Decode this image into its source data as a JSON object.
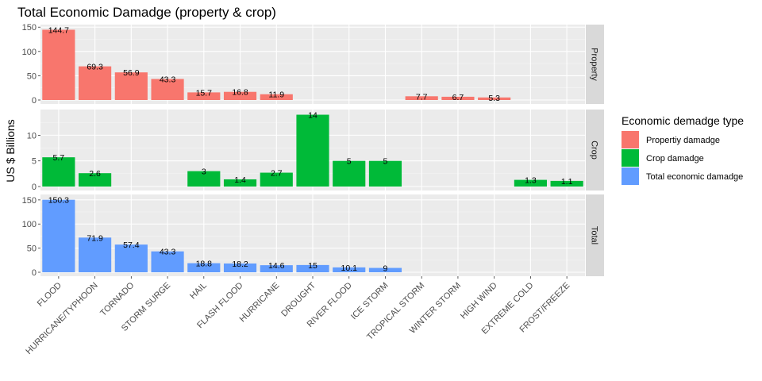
{
  "chart_data": {
    "type": "bar",
    "title": "Total Economic Damadge (property & crop)",
    "xlabel": "",
    "ylabel": "US $ Billions",
    "categories": [
      "FLOOD",
      "HURRICANE/TYPHOON",
      "TORNADO",
      "STORM SURGE",
      "HAIL",
      "FLASH FLOOD",
      "HURRICANE",
      "DROUGHT",
      "RIVER FLOOD",
      "ICE STORM",
      "TROPICAL STORM",
      "WINTER STORM",
      "HIGH WIND",
      "EXTREME COLD",
      "FROST/FREEZE"
    ],
    "legend_title": "Economic demadge type",
    "legend_position": "right",
    "grid": true,
    "series": [
      {
        "name": "Propertiy damadge",
        "facet": "Property",
        "color": "#F8766D",
        "ylim": [
          0,
          152
        ],
        "yticks": [
          0,
          50,
          100,
          150
        ],
        "values": [
          144.7,
          69.3,
          56.9,
          43.3,
          15.7,
          16.8,
          11.9,
          null,
          null,
          null,
          7.7,
          6.7,
          5.3,
          null,
          null
        ],
        "labels": [
          "144.7",
          "69.3",
          "56.9",
          "43.3",
          "15.7",
          "16.8",
          "11.9",
          "",
          "",
          "",
          "7.7",
          "6.7",
          "5.3",
          "",
          ""
        ]
      },
      {
        "name": "Crop damadge",
        "facet": "Crop",
        "color": "#00BA38",
        "ylim": [
          0,
          14.7
        ],
        "yticks": [
          0,
          5,
          10
        ],
        "values": [
          5.7,
          2.6,
          null,
          null,
          3,
          1.4,
          2.7,
          14,
          5,
          5,
          null,
          null,
          null,
          1.3,
          1.1
        ],
        "labels": [
          "5.7",
          "2.6",
          "",
          "",
          "3",
          "1.4",
          "2.7",
          "14",
          "5",
          "5",
          "",
          "",
          "",
          "1.3",
          "1.1"
        ]
      },
      {
        "name": "Total economic damadge",
        "facet": "Total",
        "color": "#619CFF",
        "ylim": [
          0,
          158
        ],
        "yticks": [
          0,
          50,
          100,
          150
        ],
        "values": [
          150.3,
          71.9,
          57.4,
          43.3,
          18.8,
          18.2,
          14.6,
          15,
          10.1,
          9,
          null,
          null,
          null,
          null,
          null
        ],
        "labels": [
          "150.3",
          "71.9",
          "57.4",
          "43.3",
          "18.8",
          "18.2",
          "14.6",
          "15",
          "10.1",
          "9",
          "",
          "",
          "",
          "",
          ""
        ]
      }
    ]
  }
}
